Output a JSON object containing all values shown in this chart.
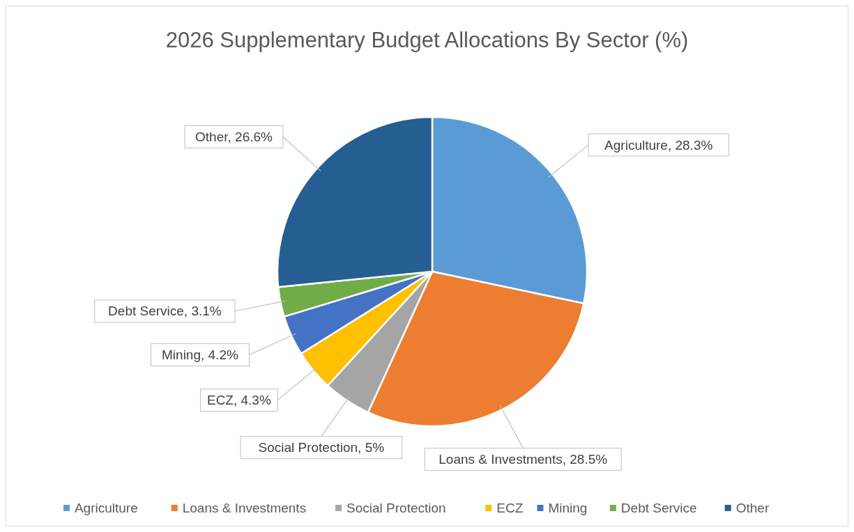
{
  "chart_data": {
    "type": "pie",
    "title": "2026 Supplementary Budget Allocations By Sector (%)",
    "categories": [
      "Agriculture",
      "Loans & Investments",
      "Social Protection",
      "ECZ",
      "Mining",
      "Debt Service",
      "Other"
    ],
    "values": [
      28.3,
      28.5,
      5,
      4.3,
      4.2,
      3.1,
      26.6
    ],
    "colors": [
      "#5b9bd5",
      "#ed7d31",
      "#a5a5a5",
      "#ffc000",
      "#4472c4",
      "#70ad47",
      "#255e91"
    ],
    "value_labels": [
      "Agriculture, 28.3%",
      "Loans & Investments, 28.5%",
      "Social Protection, 5%",
      "ECZ, 4.3%",
      "Mining, 4.2%",
      "Debt Service, 3.1%",
      "Other, 26.6%"
    ],
    "legend": "bottom"
  }
}
